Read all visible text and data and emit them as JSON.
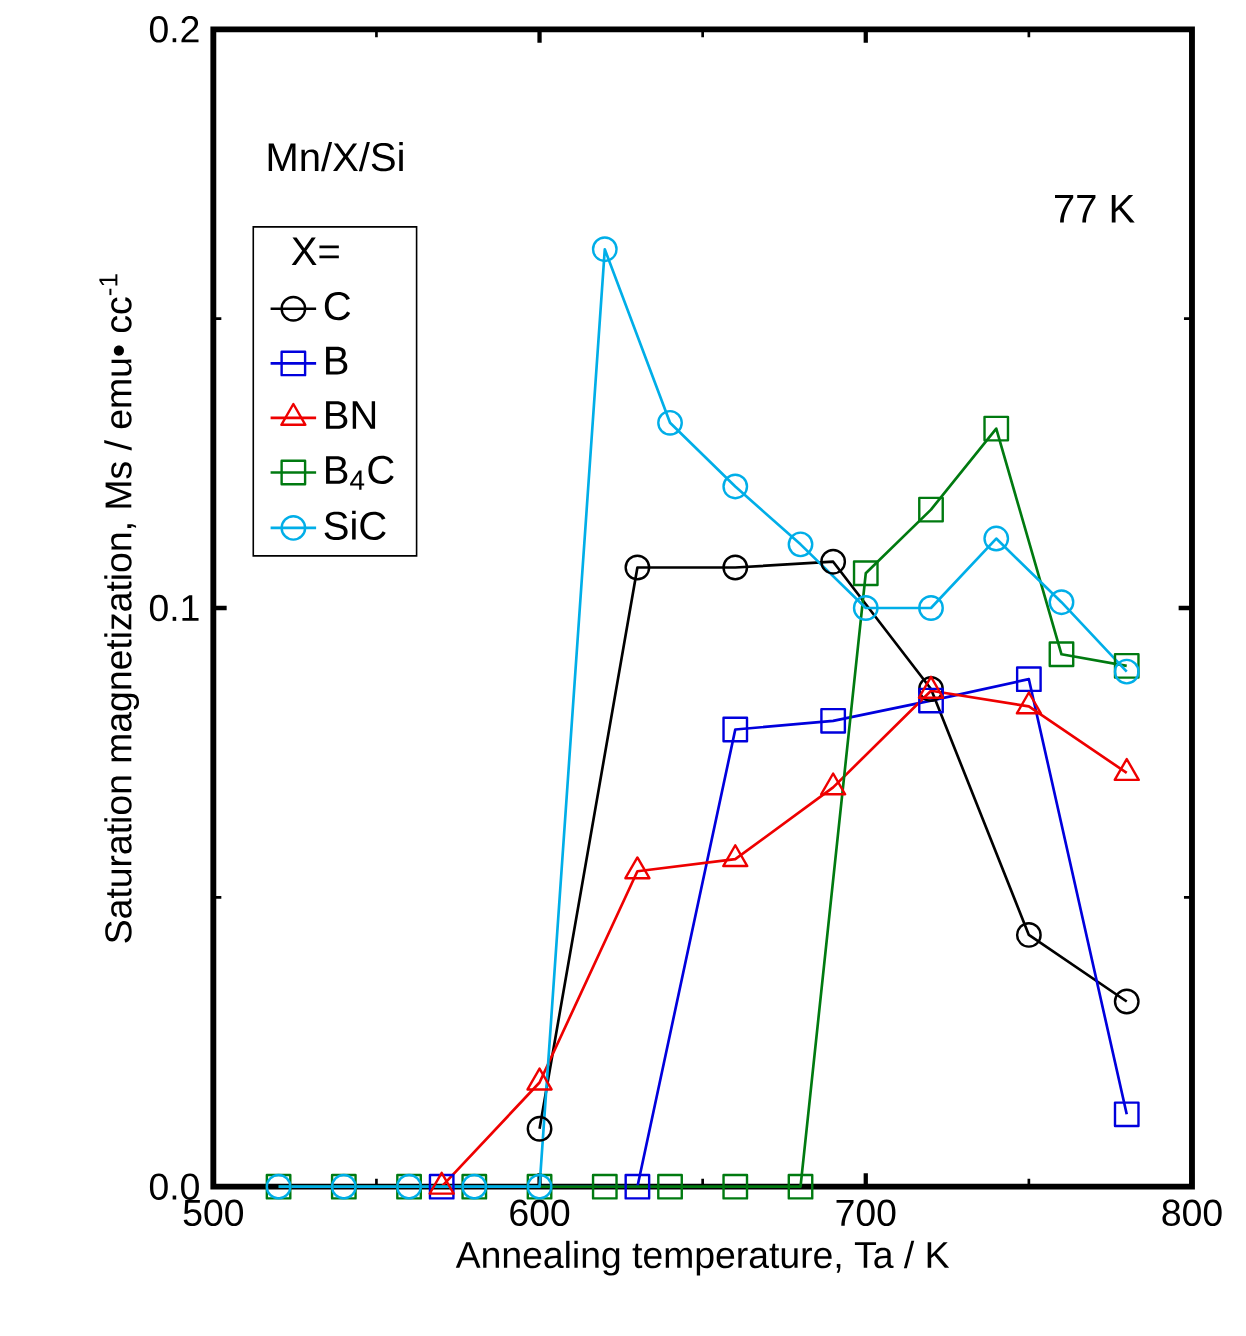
{
  "chart_data": {
    "type": "line",
    "xlabel": "Annealing temperature, Ta / K",
    "ylabel": "Saturation magnetization, Ms / emu• cc$^{-1}$",
    "legend_title": "X=",
    "legend": "top left",
    "line_style": "solid",
    "annotations": [
      "Mn/X/Si",
      "77 K"
    ],
    "xlim": [
      500,
      800
    ],
    "xticks": [
      500,
      600,
      700,
      800
    ],
    "ylim": [
      0,
      0.2
    ],
    "yticks": [
      {
        "value": 0,
        "label": "0.0"
      },
      0.1,
      0.2
    ],
    "series": [
      {
        "name": "C",
        "color": "#000000",
        "marker": "circle",
        "x": [
          600,
          630,
          660,
          690,
          720,
          750,
          780
        ],
        "values": [
          0.01,
          0.107,
          0.107,
          0.108,
          0.086,
          0.0435,
          0.032
        ]
      },
      {
        "name": "B",
        "color": "#0000dd",
        "marker": "square",
        "x": [
          570,
          630,
          660,
          690,
          720,
          750,
          780
        ],
        "values": [
          0,
          0,
          0.079,
          0.0805,
          0.084,
          0.0877,
          0.0125
        ]
      },
      {
        "name": "BN",
        "color": "#ee0000",
        "marker": "triangle",
        "x": [
          570,
          600,
          630,
          660,
          690,
          720,
          750,
          780
        ],
        "values": [
          0,
          0.018,
          0.0545,
          0.0566,
          0.069,
          0.0857,
          0.083,
          0.0715
        ]
      },
      {
        "name": "B$_{4}$C",
        "color": "#007a10",
        "marker": "square",
        "x": [
          520,
          540,
          560,
          580,
          600,
          620,
          640,
          660,
          680,
          700,
          720,
          740,
          760,
          780
        ],
        "values": [
          0,
          0,
          0,
          0,
          0,
          0,
          0,
          0,
          0,
          0.106,
          0.117,
          0.131,
          0.092,
          0.09
        ]
      },
      {
        "name": "SiC",
        "color": "#00aee8",
        "marker": "circle",
        "x": [
          520,
          540,
          560,
          580,
          600,
          620,
          640,
          660,
          680,
          700,
          720,
          740,
          760,
          780
        ],
        "values": [
          0,
          0,
          0,
          0,
          0,
          0.162,
          0.132,
          0.121,
          0.111,
          0.1,
          0.1,
          0.112,
          0.101,
          0.089
        ]
      }
    ]
  }
}
